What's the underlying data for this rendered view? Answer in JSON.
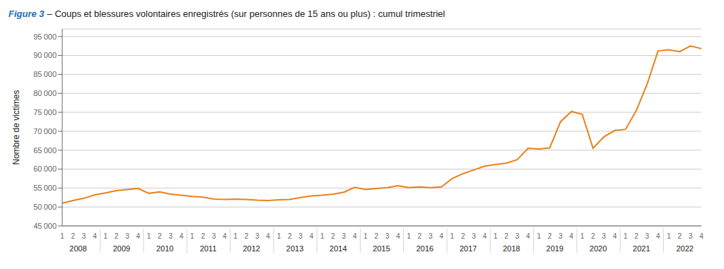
{
  "chart_data": {
    "type": "line",
    "title_parts": [
      {
        "text": "Figure 3",
        "color": "#1a6eb5"
      },
      {
        "text": "– Coups et blessures volontaires enregistrés (sur personnes de 15 ans ou plus) : cumul trimestriel"
      }
    ],
    "ylabel": "Nombre de victimes",
    "categories": [
      "1",
      "2",
      "3",
      "4",
      "1",
      "2",
      "3",
      "4",
      "1",
      "2",
      "3",
      "4",
      "1",
      "2",
      "3",
      "4",
      "1",
      "2",
      "3",
      "4",
      "1",
      "2",
      "3",
      "4",
      "1",
      "2",
      "3",
      "4",
      "1",
      "2",
      "3",
      "4",
      "1",
      "2",
      "3",
      "4",
      "1",
      "2",
      "3",
      "4",
      "1",
      "2",
      "3",
      "4",
      "1",
      "2",
      "3",
      "4",
      "1",
      "2",
      "3",
      "4",
      "1",
      "2",
      "3",
      "4",
      "1",
      "2",
      "3",
      "4"
    ],
    "category_groups": [
      "2008",
      "2009",
      "2010",
      "2011",
      "2012",
      "2013",
      "2014",
      "2015",
      "2016",
      "2017",
      "2018",
      "2019",
      "2020",
      "2021",
      "2022"
    ],
    "values": [
      51000,
      51700,
      52300,
      53200,
      53700,
      54300,
      54600,
      54900,
      53600,
      54000,
      53400,
      53100,
      52800,
      52600,
      52100,
      52000,
      52100,
      52000,
      51800,
      51700,
      51900,
      52000,
      52500,
      52900,
      53100,
      53400,
      53900,
      55200,
      54600,
      54900,
      55100,
      55600,
      55100,
      55300,
      55100,
      55300,
      57500,
      58800,
      59800,
      60800,
      61200,
      61600,
      62500,
      65500,
      65300,
      65600,
      72500,
      75200,
      74500,
      65500,
      68500,
      70200,
      70500,
      75500,
      82500,
      91200,
      91500,
      91000,
      92500,
      91800
    ],
    "color": "#E8821A",
    "ylim": [
      45000,
      97000
    ],
    "yticks": [
      {
        "value": 45000,
        "label": "45 000"
      },
      {
        "value": 50000,
        "label": "50 000"
      },
      {
        "value": 55000,
        "label": "55 000"
      },
      {
        "value": 60000,
        "label": "60 000"
      },
      {
        "value": 65000,
        "label": "65 000"
      },
      {
        "value": 70000,
        "label": "70 000"
      },
      {
        "value": 75000,
        "label": "75 000"
      },
      {
        "value": 80000,
        "label": "80 000"
      },
      {
        "value": 85000,
        "label": "85 000"
      },
      {
        "value": 90000,
        "label": "90 000"
      },
      {
        "value": 95000,
        "label": "95 000"
      }
    ],
    "grid": true
  }
}
